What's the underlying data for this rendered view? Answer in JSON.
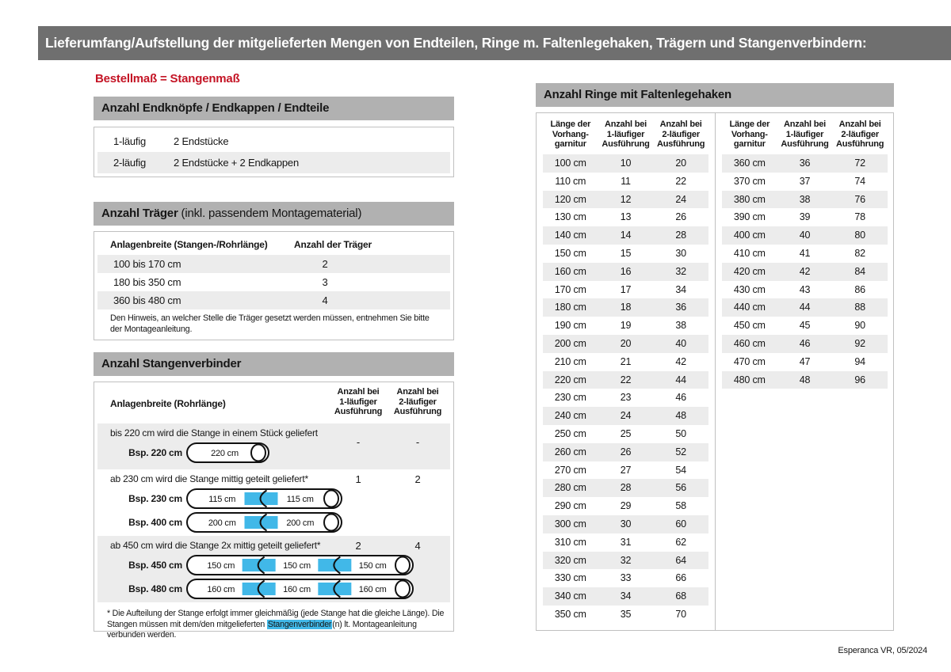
{
  "page": {
    "header": "Lieferumfang/Aufstellung der mitgelieferten Mengen von Endteilen, Ringe m. Faltenlegehaken, Trägern und Stangenverbindern:",
    "subtitle": "Bestellmaß = Stangenmaß",
    "footer": "Esperanca VR, 05/2024"
  },
  "colors": {
    "header_band_gray": "#6f6f6f",
    "section_band_gray": "#b1b1b1",
    "stripe_gray": "#ececec",
    "accent_red": "#c41425",
    "connector_blue": "#41b8e8"
  },
  "endpieces": {
    "title": "Anzahl Endknöpfe / Endkappen / Endteile",
    "rows": [
      {
        "label": "1-läufig",
        "value": "2 Endstücke"
      },
      {
        "label": "2-läufig",
        "value": "2 Endstücke + 2 Endkappen"
      }
    ]
  },
  "traeger": {
    "title_bold": "Anzahl Träger",
    "title_rest": " (inkl. passendem Montagematerial)",
    "col1": "Anlagenbreite (Stangen-/Rohrlänge)",
    "col2": "Anzahl der Träger",
    "rows": [
      {
        "range": "100 bis 170 cm",
        "count": "2"
      },
      {
        "range": "180 bis 350 cm",
        "count": "3"
      },
      {
        "range": "360 bis 480 cm",
        "count": "4"
      }
    ],
    "note": "Den Hinweis, an welcher Stelle die Träger gesetzt werden müssen, entnehmen Sie bitte\nder Montageanleitung."
  },
  "verbinder": {
    "title": "Anzahl Stangenverbinder",
    "col1": "Anlagenbreite (Rohrlänge)",
    "col2": "Anzahl bei\n1-läufiger\nAusführung",
    "col3": "Anzahl bei\n2-läufiger\nAusführung",
    "rows": [
      {
        "desc": "bis 220 cm wird die Stange in einem Stück geliefert",
        "v1": "-",
        "v2": "-",
        "examples": [
          {
            "label": "Bsp. 220 cm",
            "segments": [
              "220 cm"
            ]
          }
        ]
      },
      {
        "desc": "ab 230 cm wird die Stange mittig geteilt geliefert*",
        "v1": "1",
        "v2": "2",
        "examples": [
          {
            "label": "Bsp. 230 cm",
            "segments": [
              "115 cm",
              "115 cm"
            ]
          },
          {
            "label": "Bsp. 400 cm",
            "segments": [
              "200 cm",
              "200 cm"
            ]
          }
        ]
      },
      {
        "desc": "ab 450 cm wird die Stange 2x mittig geteilt geliefert*",
        "v1": "2",
        "v2": "4",
        "examples": [
          {
            "label": "Bsp. 450 cm",
            "segments": [
              "150 cm",
              "150 cm",
              "150 cm"
            ]
          },
          {
            "label": "Bsp. 480 cm",
            "segments": [
              "160 cm",
              "160 cm",
              "160 cm"
            ]
          }
        ]
      }
    ],
    "footnote_pre": "* Die Aufteilung der Stange erfolgt immer gleichmäßig (jede Stange hat die gleiche Länge). Die Stangen müssen mit dem/den mitgelieferten ",
    "footnote_highlight": "Stangenverbinder",
    "footnote_post": "(n) lt. Montageanleitung verbunden werden."
  },
  "ringe": {
    "title": "Anzahl Ringe mit Faltenlegehaken",
    "col_headers": {
      "length": "Länge der\nVorhang-\ngarnitur",
      "one_run": "Anzahl bei\n1-läufiger\nAusführung",
      "two_run": "Anzahl bei\n2-läufiger\nAusführung"
    },
    "table_left_rows": [
      [
        "100 cm",
        "10",
        "20"
      ],
      [
        "110 cm",
        "11",
        "22"
      ],
      [
        "120 cm",
        "12",
        "24"
      ],
      [
        "130 cm",
        "13",
        "26"
      ],
      [
        "140 cm",
        "14",
        "28"
      ],
      [
        "150 cm",
        "15",
        "30"
      ],
      [
        "160 cm",
        "16",
        "32"
      ],
      [
        "170 cm",
        "17",
        "34"
      ],
      [
        "180 cm",
        "18",
        "36"
      ],
      [
        "190 cm",
        "19",
        "38"
      ],
      [
        "200 cm",
        "20",
        "40"
      ],
      [
        "210 cm",
        "21",
        "42"
      ],
      [
        "220 cm",
        "22",
        "44"
      ],
      [
        "230 cm",
        "23",
        "46"
      ],
      [
        "240 cm",
        "24",
        "48"
      ],
      [
        "250 cm",
        "25",
        "50"
      ],
      [
        "260 cm",
        "26",
        "52"
      ],
      [
        "270 cm",
        "27",
        "54"
      ],
      [
        "280 cm",
        "28",
        "56"
      ],
      [
        "290 cm",
        "29",
        "58"
      ],
      [
        "300 cm",
        "30",
        "60"
      ],
      [
        "310 cm",
        "31",
        "62"
      ],
      [
        "320 cm",
        "32",
        "64"
      ],
      [
        "330 cm",
        "33",
        "66"
      ],
      [
        "340 cm",
        "34",
        "68"
      ],
      [
        "350 cm",
        "35",
        "70"
      ]
    ],
    "table_right_rows": [
      [
        "360 cm",
        "36",
        "72"
      ],
      [
        "370 cm",
        "37",
        "74"
      ],
      [
        "380 cm",
        "38",
        "76"
      ],
      [
        "390 cm",
        "39",
        "78"
      ],
      [
        "400 cm",
        "40",
        "80"
      ],
      [
        "410 cm",
        "41",
        "82"
      ],
      [
        "420 cm",
        "42",
        "84"
      ],
      [
        "430 cm",
        "43",
        "86"
      ],
      [
        "440 cm",
        "44",
        "88"
      ],
      [
        "450 cm",
        "45",
        "90"
      ],
      [
        "460 cm",
        "46",
        "92"
      ],
      [
        "470 cm",
        "47",
        "94"
      ],
      [
        "480 cm",
        "48",
        "96"
      ]
    ]
  }
}
